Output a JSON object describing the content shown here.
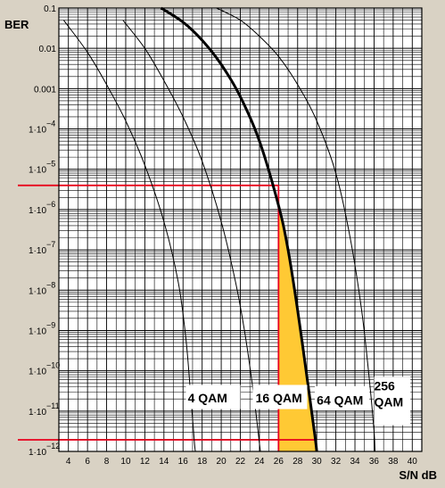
{
  "chart_data": {
    "type": "line",
    "ylabel": "BER",
    "xlabel": "S/N dB",
    "xlim": [
      3,
      41
    ],
    "x_ticks": [
      4,
      6,
      8,
      10,
      12,
      14,
      16,
      18,
      20,
      22,
      24,
      26,
      28,
      30,
      32,
      34,
      36,
      38,
      40
    ],
    "y_scale": "log",
    "ylim": [
      1e-12,
      0.1
    ],
    "y_ticks": [
      {
        "exp": -1,
        "label": "0.1"
      },
      {
        "exp": -2,
        "label": "0.01"
      },
      {
        "exp": -3,
        "label": "0.001"
      },
      {
        "exp": -4,
        "label": "1·10",
        "sup": "−4"
      },
      {
        "exp": -5,
        "label": "1·10",
        "sup": "−5"
      },
      {
        "exp": -6,
        "label": "1·10",
        "sup": "−6"
      },
      {
        "exp": -7,
        "label": "1·10",
        "sup": "−7"
      },
      {
        "exp": -8,
        "label": "1·10",
        "sup": "−8"
      },
      {
        "exp": -9,
        "label": "1·10",
        "sup": "−9"
      },
      {
        "exp": -10,
        "label": "1·10",
        "sup": "−10"
      },
      {
        "exp": -11,
        "label": "1·10",
        "sup": "−11"
      },
      {
        "exp": -12,
        "label": "1·10",
        "sup": "−12"
      }
    ],
    "series": [
      {
        "name": "4 QAM",
        "bold": false,
        "points": [
          [
            3.5,
            -1.3
          ],
          [
            6,
            -2.1
          ],
          [
            8,
            -2.9
          ],
          [
            10,
            -3.8
          ],
          [
            12,
            -4.9
          ],
          [
            14,
            -6.3
          ],
          [
            15.5,
            -7.8
          ],
          [
            16.3,
            -9.2
          ],
          [
            16.8,
            -10.6
          ],
          [
            17.2,
            -11.8
          ],
          [
            17.3,
            -12
          ]
        ]
      },
      {
        "name": "16 QAM",
        "bold": false,
        "points": [
          [
            9.7,
            -1.3
          ],
          [
            12,
            -2.0
          ],
          [
            14,
            -2.8
          ],
          [
            16,
            -3.7
          ],
          [
            18,
            -4.8
          ],
          [
            20,
            -6.3
          ],
          [
            21.5,
            -7.8
          ],
          [
            22.5,
            -9.1
          ],
          [
            23.4,
            -10.6
          ],
          [
            24,
            -11.8
          ],
          [
            24.1,
            -12
          ]
        ]
      },
      {
        "name": "64 QAM",
        "bold": true,
        "points": [
          [
            13.7,
            -1.0
          ],
          [
            16,
            -1.35
          ],
          [
            18,
            -1.8
          ],
          [
            20,
            -2.4
          ],
          [
            22,
            -3.2
          ],
          [
            24,
            -4.3
          ],
          [
            26,
            -5.9
          ],
          [
            27,
            -7.0
          ],
          [
            28,
            -8.5
          ],
          [
            29,
            -10.2
          ],
          [
            29.8,
            -11.6
          ],
          [
            30,
            -12
          ]
        ]
      },
      {
        "name": "256 QAM",
        "bold": false,
        "points": [
          [
            19.5,
            -1.0
          ],
          [
            22,
            -1.3
          ],
          [
            24,
            -1.7
          ],
          [
            26,
            -2.2
          ],
          [
            28,
            -2.9
          ],
          [
            30,
            -3.8
          ],
          [
            32,
            -5.1
          ],
          [
            33.5,
            -6.7
          ],
          [
            34.7,
            -8.5
          ],
          [
            35.5,
            -10.2
          ],
          [
            36,
            -11.5
          ],
          [
            36.1,
            -12
          ]
        ]
      }
    ],
    "series_labels": [
      {
        "lines": [
          "4 QAM"
        ],
        "x": 16.5,
        "exp": -10.65,
        "box": [
          16.3,
          22,
          -10.35,
          -10.95
        ]
      },
      {
        "lines": [
          "16 QAM"
        ],
        "x": 23.6,
        "exp": -10.65,
        "box": [
          23.3,
          29,
          -10.35,
          -10.95
        ]
      },
      {
        "lines": [
          "64 QAM"
        ],
        "x": 30.0,
        "exp": -10.7,
        "box": [
          29.8,
          35.5,
          -10.38,
          -10.98
        ]
      },
      {
        "lines": [
          "256",
          "QAM"
        ],
        "x": 36.0,
        "exp": -10.55,
        "box": [
          36.0,
          39.8,
          -10.15,
          -11.35
        ]
      }
    ],
    "highlight": {
      "x_at_ber": 26,
      "ber_exp_high": -5.4,
      "ber_exp_low": -12,
      "x_low": 26,
      "x_high": 30,
      "line_color": "#e8001c",
      "fill_color": "#ffc934"
    },
    "colors": {
      "plot_bg": "#ffffff",
      "page_bg": "#d9d2c4",
      "grid": "#000000"
    }
  }
}
